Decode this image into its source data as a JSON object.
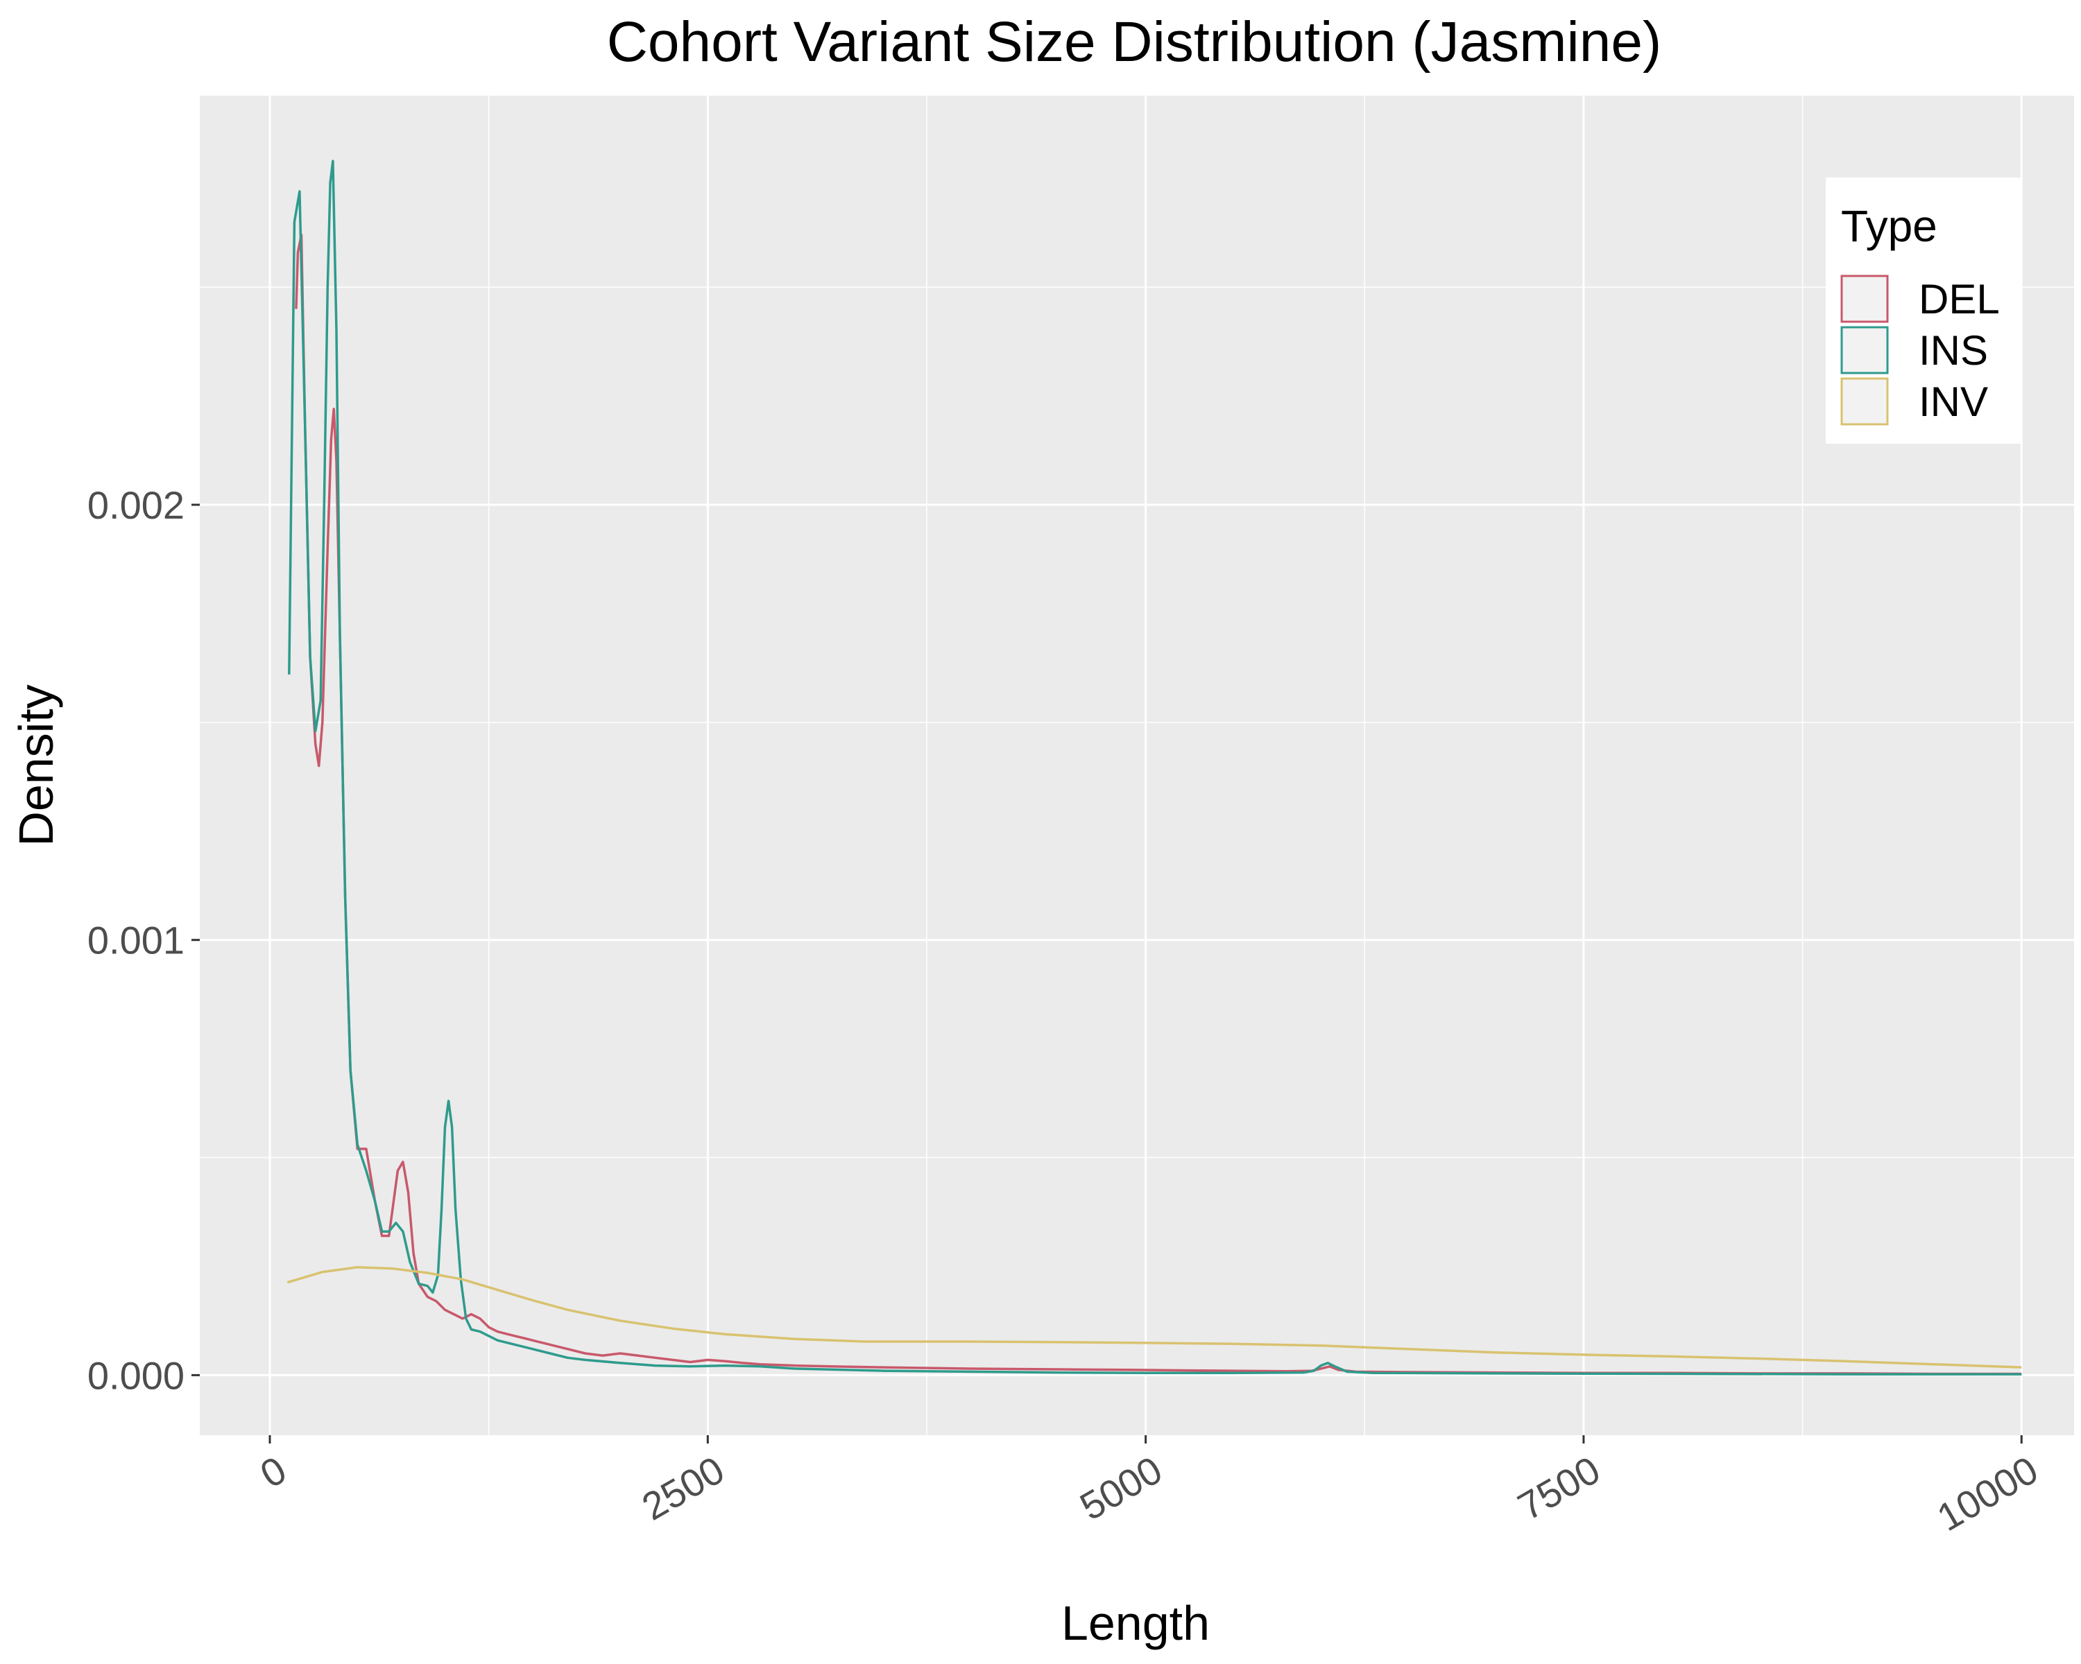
{
  "chart_data": {
    "type": "line",
    "title": "Cohort Variant Size Distribution (Jasmine)",
    "xlabel": "Length",
    "ylabel": "Density",
    "xlim": [
      -400,
      10300
    ],
    "ylim": [
      -0.000138,
      0.00294
    ],
    "x_ticks": [
      0,
      2500,
      5000,
      7500,
      10000
    ],
    "x_tick_labels": [
      "0",
      "2500",
      "5000",
      "7500",
      "10000"
    ],
    "y_ticks": [
      0.0,
      0.001,
      0.002
    ],
    "y_tick_labels": [
      "0.000",
      "0.001",
      "0.002"
    ],
    "x_tick_label_rotation": "diagonal",
    "background": "#ebebeb",
    "grid": true,
    "legend": {
      "title": "Type",
      "position": "top-right"
    },
    "series": [
      {
        "name": "DEL",
        "color": "#c8596b",
        "points": [
          [
            150,
            0.00245
          ],
          [
            160,
            0.00258
          ],
          [
            180,
            0.00262
          ],
          [
            200,
            0.0022
          ],
          [
            230,
            0.00165
          ],
          [
            260,
            0.00145
          ],
          [
            280,
            0.0014
          ],
          [
            300,
            0.0015
          ],
          [
            330,
            0.0019
          ],
          [
            350,
            0.00215
          ],
          [
            365,
            0.00222
          ],
          [
            380,
            0.0021
          ],
          [
            400,
            0.0017
          ],
          [
            430,
            0.0011
          ],
          [
            460,
            0.0007
          ],
          [
            500,
            0.00052
          ],
          [
            550,
            0.00052
          ],
          [
            600,
            0.0004
          ],
          [
            640,
            0.00032
          ],
          [
            680,
            0.00032
          ],
          [
            700,
            0.00038
          ],
          [
            730,
            0.00047
          ],
          [
            760,
            0.00049
          ],
          [
            790,
            0.00042
          ],
          [
            820,
            0.00028
          ],
          [
            850,
            0.00021
          ],
          [
            900,
            0.00018
          ],
          [
            950,
            0.00017
          ],
          [
            1000,
            0.00015
          ],
          [
            1050,
            0.00014
          ],
          [
            1100,
            0.00013
          ],
          [
            1150,
            0.00014
          ],
          [
            1200,
            0.00013
          ],
          [
            1250,
            0.00011
          ],
          [
            1300,
            0.0001
          ],
          [
            1350,
            9.5e-05
          ],
          [
            1400,
            9e-05
          ],
          [
            1450,
            8.5e-05
          ],
          [
            1500,
            8e-05
          ],
          [
            1600,
            7e-05
          ],
          [
            1700,
            6e-05
          ],
          [
            1800,
            5e-05
          ],
          [
            1900,
            4.5e-05
          ],
          [
            2000,
            5e-05
          ],
          [
            2100,
            4.5e-05
          ],
          [
            2200,
            4e-05
          ],
          [
            2300,
            3.5e-05
          ],
          [
            2400,
            3e-05
          ],
          [
            2500,
            3.5e-05
          ],
          [
            2600,
            3.2e-05
          ],
          [
            2700,
            2.8e-05
          ],
          [
            2800,
            2.5e-05
          ],
          [
            3000,
            2.2e-05
          ],
          [
            3200,
            2e-05
          ],
          [
            3500,
            1.8e-05
          ],
          [
            3800,
            1.6e-05
          ],
          [
            4000,
            1.5e-05
          ],
          [
            4300,
            1.4e-05
          ],
          [
            4600,
            1.3e-05
          ],
          [
            4900,
            1.2e-05
          ],
          [
            5200,
            1.1e-05
          ],
          [
            5500,
            1e-05
          ],
          [
            5800,
            9e-06
          ],
          [
            5950,
            1e-05
          ],
          [
            6000,
            1.5e-05
          ],
          [
            6050,
            2e-05
          ],
          [
            6100,
            1.2e-05
          ],
          [
            6200,
            8e-06
          ],
          [
            6500,
            7e-06
          ],
          [
            7000,
            6e-06
          ],
          [
            7500,
            5e-06
          ],
          [
            8000,
            5e-06
          ],
          [
            8500,
            4e-06
          ],
          [
            9000,
            4e-06
          ],
          [
            9500,
            3e-06
          ],
          [
            10000,
            3e-06
          ]
        ]
      },
      {
        "name": "INS",
        "color": "#2e9b8c",
        "points": [
          [
            110,
            0.00161
          ],
          [
            140,
            0.00265
          ],
          [
            170,
            0.00272
          ],
          [
            200,
            0.0022
          ],
          [
            230,
            0.00165
          ],
          [
            260,
            0.00148
          ],
          [
            290,
            0.00155
          ],
          [
            310,
            0.002
          ],
          [
            330,
            0.0025
          ],
          [
            345,
            0.00274
          ],
          [
            360,
            0.00279
          ],
          [
            380,
            0.0024
          ],
          [
            400,
            0.0017
          ],
          [
            430,
            0.0011
          ],
          [
            460,
            0.0007
          ],
          [
            500,
            0.00053
          ],
          [
            550,
            0.00047
          ],
          [
            600,
            0.0004
          ],
          [
            640,
            0.00033
          ],
          [
            680,
            0.00033
          ],
          [
            720,
            0.00035
          ],
          [
            760,
            0.00033
          ],
          [
            800,
            0.00026
          ],
          [
            850,
            0.00021
          ],
          [
            900,
            0.000205
          ],
          [
            930,
            0.00019
          ],
          [
            960,
            0.00023
          ],
          [
            980,
            0.00038
          ],
          [
            1000,
            0.00057
          ],
          [
            1020,
            0.00063
          ],
          [
            1040,
            0.00057
          ],
          [
            1060,
            0.00038
          ],
          [
            1090,
            0.00022
          ],
          [
            1120,
            0.00013
          ],
          [
            1150,
            0.000105
          ],
          [
            1200,
            0.0001
          ],
          [
            1300,
            8e-05
          ],
          [
            1400,
            7e-05
          ],
          [
            1500,
            6e-05
          ],
          [
            1600,
            5e-05
          ],
          [
            1700,
            4e-05
          ],
          [
            1800,
            3.5e-05
          ],
          [
            2000,
            2.8e-05
          ],
          [
            2200,
            2.2e-05
          ],
          [
            2400,
            2e-05
          ],
          [
            2600,
            2.2e-05
          ],
          [
            2800,
            2e-05
          ],
          [
            3000,
            1.5e-05
          ],
          [
            3500,
            1e-05
          ],
          [
            4000,
            8e-06
          ],
          [
            4500,
            6e-06
          ],
          [
            5000,
            5e-06
          ],
          [
            5500,
            5e-06
          ],
          [
            5900,
            6e-06
          ],
          [
            5960,
            1e-05
          ],
          [
            6000,
            2.2e-05
          ],
          [
            6040,
            2.8e-05
          ],
          [
            6080,
            2e-05
          ],
          [
            6150,
            8e-06
          ],
          [
            6300,
            5e-06
          ],
          [
            7000,
            4e-06
          ],
          [
            8000,
            3e-06
          ],
          [
            9000,
            2e-06
          ],
          [
            10000,
            2e-06
          ]
        ]
      },
      {
        "name": "INV",
        "color": "#d9c270",
        "points": [
          [
            100,
            0.000213
          ],
          [
            300,
            0.000237
          ],
          [
            500,
            0.000248
          ],
          [
            700,
            0.000245
          ],
          [
            900,
            0.000235
          ],
          [
            1100,
            0.00022
          ],
          [
            1300,
            0.000196
          ],
          [
            1500,
            0.000172
          ],
          [
            1700,
            0.00015
          ],
          [
            2000,
            0.000125
          ],
          [
            2300,
            0.000107
          ],
          [
            2600,
            9.4e-05
          ],
          [
            3000,
            8.3e-05
          ],
          [
            3400,
            7.7e-05
          ],
          [
            4000,
            7.7e-05
          ],
          [
            4500,
            7.6e-05
          ],
          [
            5000,
            7.4e-05
          ],
          [
            5500,
            7.2e-05
          ],
          [
            6000,
            6.8e-05
          ],
          [
            6500,
            6e-05
          ],
          [
            7000,
            5.2e-05
          ],
          [
            7500,
            4.7e-05
          ],
          [
            8000,
            4.3e-05
          ],
          [
            8500,
            3.8e-05
          ],
          [
            9000,
            3.2e-05
          ],
          [
            9500,
            2.5e-05
          ],
          [
            10000,
            1.8e-05
          ]
        ]
      }
    ]
  }
}
